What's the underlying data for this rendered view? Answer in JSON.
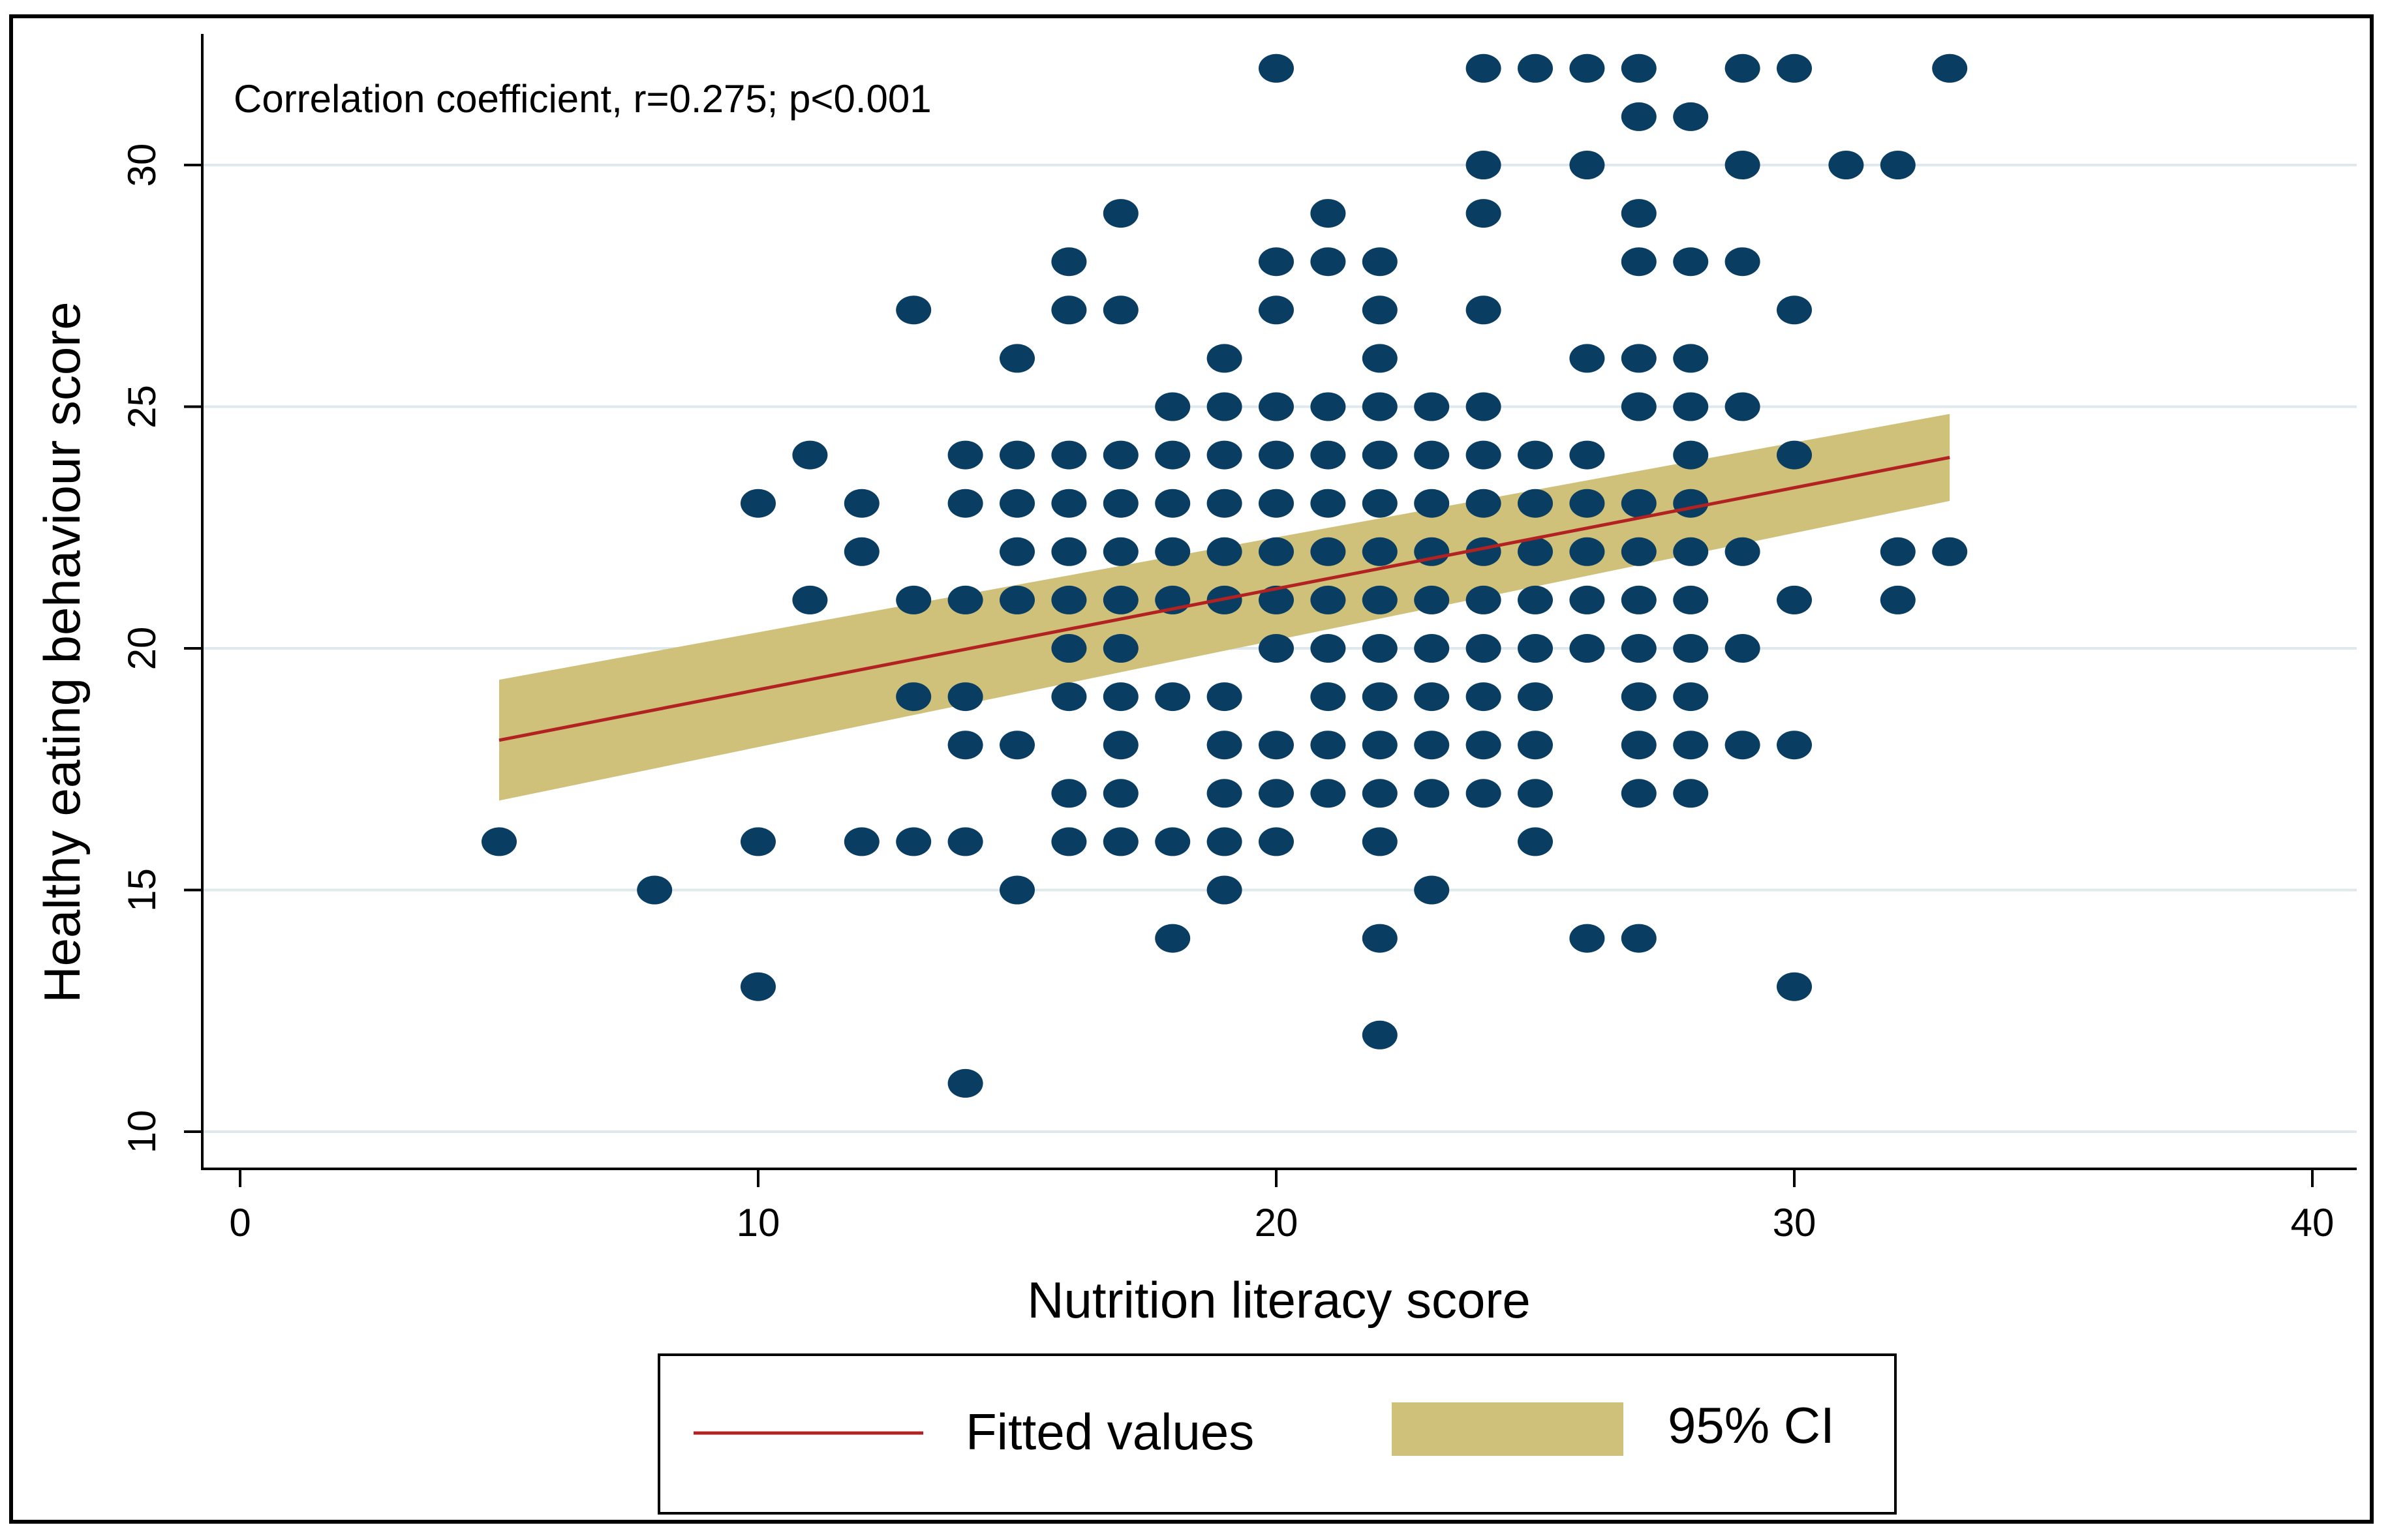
{
  "chart_data": {
    "type": "scatter",
    "title": "",
    "annotation": "Correlation coefficient, r=0.275; p<0.001",
    "xlabel": "Nutrition literacy score",
    "ylabel": "Healthy eating behaviour score",
    "xlim": [
      0,
      40
    ],
    "ylim": [
      10,
      32
    ],
    "x_ticks": [
      0,
      10,
      20,
      30,
      40
    ],
    "y_ticks": [
      10,
      15,
      20,
      25,
      30
    ],
    "grid": "horizontal",
    "colors": {
      "points": "#0a3d62",
      "fitted_line": "#b22222",
      "ci_band": "#cfc17a",
      "gridline": "#dfe8ed"
    },
    "fitted_line": {
      "x": [
        5,
        33
      ],
      "y": [
        18.1,
        23.95
      ]
    },
    "ci_band": {
      "x": [
        5,
        33
      ],
      "lower": [
        16.85,
        23.05
      ],
      "upper": [
        19.35,
        24.85
      ]
    },
    "points": [
      [
        5,
        16
      ],
      [
        8,
        15
      ],
      [
        10,
        23
      ],
      [
        10,
        16
      ],
      [
        10,
        13
      ],
      [
        11,
        24
      ],
      [
        11,
        21
      ],
      [
        12,
        23
      ],
      [
        12,
        22
      ],
      [
        12,
        16
      ],
      [
        13,
        27
      ],
      [
        13,
        21
      ],
      [
        13,
        19
      ],
      [
        13,
        16
      ],
      [
        14,
        24
      ],
      [
        14,
        23
      ],
      [
        14,
        21
      ],
      [
        14,
        19
      ],
      [
        14,
        18
      ],
      [
        14,
        16
      ],
      [
        14,
        11
      ],
      [
        15,
        26
      ],
      [
        15,
        24
      ],
      [
        15,
        23
      ],
      [
        15,
        22
      ],
      [
        15,
        21
      ],
      [
        15,
        18
      ],
      [
        15,
        15
      ],
      [
        16,
        28
      ],
      [
        16,
        27
      ],
      [
        16,
        24
      ],
      [
        16,
        23
      ],
      [
        16,
        22
      ],
      [
        16,
        21
      ],
      [
        16,
        20
      ],
      [
        16,
        19
      ],
      [
        16,
        17
      ],
      [
        16,
        16
      ],
      [
        17,
        29
      ],
      [
        17,
        27
      ],
      [
        17,
        24
      ],
      [
        17,
        23
      ],
      [
        17,
        22
      ],
      [
        17,
        21
      ],
      [
        17,
        20
      ],
      [
        17,
        19
      ],
      [
        17,
        18
      ],
      [
        17,
        17
      ],
      [
        17,
        16
      ],
      [
        18,
        25
      ],
      [
        18,
        24
      ],
      [
        18,
        23
      ],
      [
        18,
        22
      ],
      [
        18,
        21
      ],
      [
        18,
        19
      ],
      [
        18,
        16
      ],
      [
        18,
        14
      ],
      [
        19,
        26
      ],
      [
        19,
        25
      ],
      [
        19,
        24
      ],
      [
        19,
        23
      ],
      [
        19,
        22
      ],
      [
        19,
        21
      ],
      [
        19,
        19
      ],
      [
        19,
        18
      ],
      [
        19,
        17
      ],
      [
        19,
        16
      ],
      [
        19,
        15
      ],
      [
        20,
        32
      ],
      [
        20,
        28
      ],
      [
        20,
        27
      ],
      [
        20,
        25
      ],
      [
        20,
        24
      ],
      [
        20,
        23
      ],
      [
        20,
        22
      ],
      [
        20,
        21
      ],
      [
        20,
        20
      ],
      [
        20,
        18
      ],
      [
        20,
        17
      ],
      [
        20,
        16
      ],
      [
        21,
        29
      ],
      [
        21,
        28
      ],
      [
        21,
        25
      ],
      [
        21,
        24
      ],
      [
        21,
        23
      ],
      [
        21,
        22
      ],
      [
        21,
        21
      ],
      [
        21,
        20
      ],
      [
        21,
        19
      ],
      [
        21,
        18
      ],
      [
        21,
        17
      ],
      [
        22,
        28
      ],
      [
        22,
        27
      ],
      [
        22,
        26
      ],
      [
        22,
        25
      ],
      [
        22,
        24
      ],
      [
        22,
        23
      ],
      [
        22,
        22
      ],
      [
        22,
        21
      ],
      [
        22,
        20
      ],
      [
        22,
        19
      ],
      [
        22,
        18
      ],
      [
        22,
        17
      ],
      [
        22,
        16
      ],
      [
        22,
        14
      ],
      [
        22,
        12
      ],
      [
        23,
        25
      ],
      [
        23,
        24
      ],
      [
        23,
        23
      ],
      [
        23,
        22
      ],
      [
        23,
        21
      ],
      [
        23,
        20
      ],
      [
        23,
        19
      ],
      [
        23,
        18
      ],
      [
        23,
        17
      ],
      [
        23,
        15
      ],
      [
        24,
        32
      ],
      [
        24,
        30
      ],
      [
        24,
        29
      ],
      [
        24,
        27
      ],
      [
        24,
        25
      ],
      [
        24,
        24
      ],
      [
        24,
        23
      ],
      [
        24,
        22
      ],
      [
        24,
        21
      ],
      [
        24,
        20
      ],
      [
        24,
        19
      ],
      [
        24,
        18
      ],
      [
        24,
        17
      ],
      [
        25,
        32
      ],
      [
        25,
        24
      ],
      [
        25,
        23
      ],
      [
        25,
        22
      ],
      [
        25,
        21
      ],
      [
        25,
        20
      ],
      [
        25,
        19
      ],
      [
        25,
        18
      ],
      [
        25,
        17
      ],
      [
        25,
        16
      ],
      [
        26,
        32
      ],
      [
        26,
        30
      ],
      [
        26,
        26
      ],
      [
        26,
        24
      ],
      [
        26,
        23
      ],
      [
        26,
        22
      ],
      [
        26,
        21
      ],
      [
        26,
        20
      ],
      [
        26,
        14
      ],
      [
        27,
        32
      ],
      [
        27,
        31
      ],
      [
        27,
        29
      ],
      [
        27,
        28
      ],
      [
        27,
        26
      ],
      [
        27,
        25
      ],
      [
        27,
        23
      ],
      [
        27,
        22
      ],
      [
        27,
        21
      ],
      [
        27,
        20
      ],
      [
        27,
        19
      ],
      [
        27,
        18
      ],
      [
        27,
        17
      ],
      [
        27,
        14
      ],
      [
        28,
        31
      ],
      [
        28,
        28
      ],
      [
        28,
        26
      ],
      [
        28,
        25
      ],
      [
        28,
        24
      ],
      [
        28,
        23
      ],
      [
        28,
        22
      ],
      [
        28,
        21
      ],
      [
        28,
        20
      ],
      [
        28,
        19
      ],
      [
        28,
        18
      ],
      [
        28,
        17
      ],
      [
        29,
        32
      ],
      [
        29,
        30
      ],
      [
        29,
        28
      ],
      [
        29,
        25
      ],
      [
        29,
        22
      ],
      [
        29,
        20
      ],
      [
        29,
        18
      ],
      [
        30,
        32
      ],
      [
        30,
        27
      ],
      [
        30,
        24
      ],
      [
        30,
        21
      ],
      [
        30,
        18
      ],
      [
        30,
        13
      ],
      [
        31,
        30
      ],
      [
        32,
        30
      ],
      [
        32,
        22
      ],
      [
        32,
        21
      ],
      [
        33,
        32
      ],
      [
        33,
        22
      ]
    ],
    "legend": {
      "position": "bottom",
      "entries": [
        {
          "label": "Fitted values",
          "kind": "line"
        },
        {
          "label": "95% CI",
          "kind": "band"
        }
      ]
    }
  }
}
